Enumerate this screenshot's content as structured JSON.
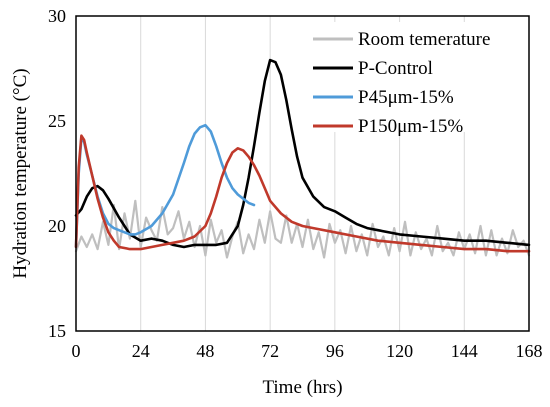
{
  "chart_data": {
    "type": "line",
    "xlabel": "Time (hrs)",
    "ylabel": "Hydration temperature (°C)",
    "xlim": [
      0,
      168
    ],
    "ylim": [
      15,
      30
    ],
    "xticks": [
      0,
      24,
      48,
      72,
      96,
      120,
      144,
      168
    ],
    "yticks": [
      15,
      20,
      25,
      30
    ],
    "grid": "vertical",
    "legend_position": "top-right",
    "series": [
      {
        "name": "Room temerature",
        "color": "#bfbfbf",
        "x": [
          0,
          2,
          4,
          6,
          8,
          10,
          12,
          14,
          16,
          18,
          20,
          22,
          24,
          26,
          28,
          30,
          32,
          34,
          36,
          38,
          40,
          42,
          44,
          46,
          48,
          50,
          52,
          54,
          56,
          58,
          60,
          62,
          64,
          66,
          68,
          70,
          72,
          74,
          76,
          78,
          80,
          82,
          84,
          86,
          88,
          90,
          92,
          94,
          96,
          98,
          100,
          102,
          104,
          106,
          108,
          110,
          112,
          114,
          116,
          118,
          120,
          122,
          124,
          126,
          128,
          130,
          132,
          134,
          136,
          138,
          140,
          142,
          144,
          146,
          148,
          150,
          152,
          154,
          156,
          158,
          160,
          162,
          164,
          166,
          168
        ],
        "y": [
          18.8,
          19.5,
          19.0,
          19.6,
          18.9,
          20.2,
          19.1,
          21.0,
          18.9,
          20.6,
          19.4,
          21.2,
          19.0,
          20.4,
          19.8,
          19.3,
          20.9,
          19.6,
          19.9,
          20.7,
          19.4,
          20.2,
          19.0,
          20.0,
          18.6,
          20.3,
          19.2,
          19.8,
          18.5,
          19.5,
          20.2,
          18.7,
          19.6,
          18.9,
          20.3,
          19.2,
          20.7,
          19.4,
          19.2,
          20.5,
          19.2,
          20.1,
          19.0,
          20.3,
          18.9,
          19.7,
          18.5,
          20.1,
          19.2,
          19.8,
          18.7,
          20.0,
          18.8,
          19.6,
          18.6,
          20.1,
          19.0,
          19.5,
          18.6,
          19.9,
          18.8,
          20.2,
          18.6,
          19.7,
          18.9,
          19.4,
          18.6,
          20.0,
          18.8,
          19.2,
          18.6,
          19.7,
          18.9,
          19.6,
          18.7,
          20.0,
          18.6,
          19.8,
          18.6,
          19.4,
          18.7,
          19.8,
          19.0,
          19.3,
          18.6
        ]
      },
      {
        "name": "P-Control",
        "color": "#000000",
        "x": [
          0,
          2,
          4,
          6,
          8,
          10,
          12,
          16,
          20,
          24,
          28,
          32,
          36,
          40,
          44,
          48,
          52,
          56,
          60,
          62,
          64,
          66,
          68,
          70,
          72,
          74,
          76,
          78,
          80,
          82,
          84,
          88,
          92,
          96,
          100,
          104,
          108,
          112,
          120,
          128,
          136,
          144,
          152,
          160,
          168
        ],
        "y": [
          20.5,
          20.8,
          21.4,
          21.8,
          21.9,
          21.7,
          21.3,
          20.4,
          19.6,
          19.3,
          19.4,
          19.3,
          19.1,
          19.0,
          19.1,
          19.1,
          19.1,
          19.2,
          20.0,
          21.0,
          22.3,
          23.8,
          25.4,
          26.9,
          27.9,
          27.8,
          27.2,
          26.0,
          24.6,
          23.3,
          22.3,
          21.4,
          20.9,
          20.7,
          20.4,
          20.1,
          19.9,
          19.8,
          19.6,
          19.5,
          19.4,
          19.3,
          19.3,
          19.2,
          19.1
        ]
      },
      {
        "name": "P45μm-15%",
        "color": "#4f9bd9",
        "x": [
          0,
          1,
          2,
          3,
          4,
          6,
          8,
          10,
          12,
          14,
          16,
          18,
          20,
          22,
          24,
          28,
          32,
          36,
          40,
          42,
          44,
          46,
          48,
          50,
          52,
          54,
          56,
          58,
          60,
          62,
          64,
          66
        ],
        "y": [
          19.0,
          22.5,
          24.2,
          24.0,
          23.4,
          22.4,
          21.4,
          20.6,
          20.1,
          19.9,
          19.8,
          19.7,
          19.6,
          19.6,
          19.7,
          20.0,
          20.6,
          21.5,
          23.0,
          23.8,
          24.4,
          24.7,
          24.8,
          24.5,
          23.8,
          23.0,
          22.3,
          21.8,
          21.5,
          21.3,
          21.1,
          21.0
        ]
      },
      {
        "name": "P150μm-15%",
        "color": "#c0392b",
        "x": [
          0,
          1,
          2,
          3,
          4,
          6,
          8,
          10,
          12,
          14,
          16,
          20,
          24,
          28,
          32,
          36,
          40,
          44,
          48,
          50,
          52,
          54,
          56,
          58,
          60,
          62,
          64,
          66,
          68,
          70,
          72,
          76,
          80,
          84,
          88,
          96,
          104,
          112,
          120,
          128,
          136,
          144,
          152,
          160,
          168
        ],
        "y": [
          19.0,
          22.8,
          24.3,
          24.1,
          23.5,
          22.4,
          21.3,
          20.4,
          19.7,
          19.3,
          19.0,
          18.9,
          18.9,
          19.0,
          19.1,
          19.2,
          19.3,
          19.5,
          20.0,
          20.6,
          21.4,
          22.3,
          23.0,
          23.5,
          23.7,
          23.6,
          23.3,
          22.9,
          22.4,
          21.8,
          21.2,
          20.6,
          20.2,
          20.0,
          19.9,
          19.7,
          19.5,
          19.3,
          19.2,
          19.1,
          19.0,
          18.9,
          18.9,
          18.8,
          18.8
        ]
      }
    ]
  }
}
